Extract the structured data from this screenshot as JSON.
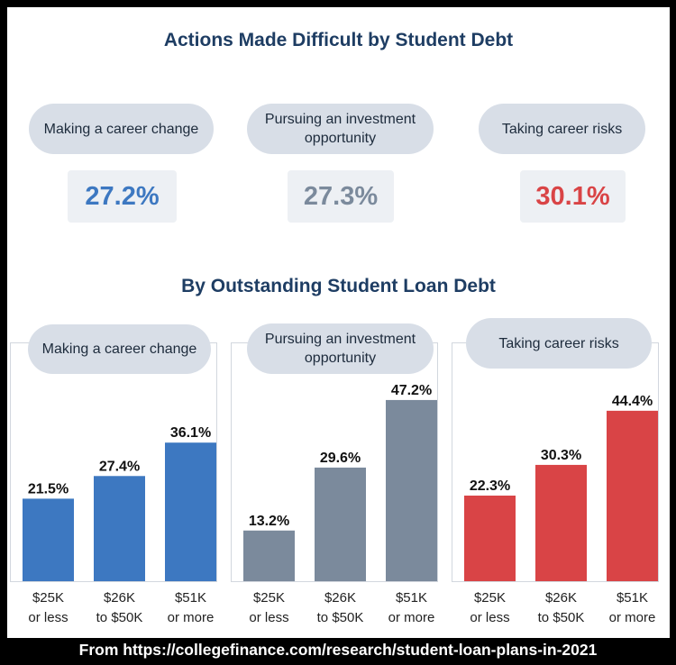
{
  "title": "Actions Made Difficult by Student Debt",
  "subtitle": "By Outstanding Student Loan Debt",
  "overall": [
    {
      "label": "Making a career change",
      "value": "27.2%",
      "color": "#3d78c1"
    },
    {
      "label": "Pursuing an investment opportunity",
      "value": "27.3%",
      "color": "#7b8a9c"
    },
    {
      "label": "Taking career risks",
      "value": "30.1%",
      "color": "#d94446"
    }
  ],
  "chart_data": [
    {
      "type": "bar",
      "title": "Making a career change",
      "categories": [
        "$25K or less",
        "$26K to $50K",
        "$51K or more"
      ],
      "values": [
        21.5,
        27.4,
        36.1
      ],
      "value_labels": [
        "21.5%",
        "27.4%",
        "36.1%"
      ],
      "ylim": [
        0,
        50
      ],
      "color": "#3d78c1"
    },
    {
      "type": "bar",
      "title": "Pursuing an investment opportunity",
      "categories": [
        "$25K or less",
        "$26K to $50K",
        "$51K or more"
      ],
      "values": [
        13.2,
        29.6,
        47.2
      ],
      "value_labels": [
        "13.2%",
        "29.6%",
        "47.2%"
      ],
      "ylim": [
        0,
        50
      ],
      "color": "#7b8a9c"
    },
    {
      "type": "bar",
      "title": "Taking career risks",
      "categories": [
        "$25K or less",
        "$26K to $50K",
        "$51K or more"
      ],
      "values": [
        22.3,
        30.3,
        44.4
      ],
      "value_labels": [
        "22.3%",
        "30.3%",
        "44.4%"
      ],
      "ylim": [
        0,
        50
      ],
      "color": "#d94446"
    }
  ],
  "category_lines": [
    [
      "$25K",
      "or less"
    ],
    [
      "$26K",
      "to $50K"
    ],
    [
      "$51K",
      "or more"
    ]
  ],
  "footer": "From https://collegefinance.com/research/student-loan-plans-in-2021"
}
